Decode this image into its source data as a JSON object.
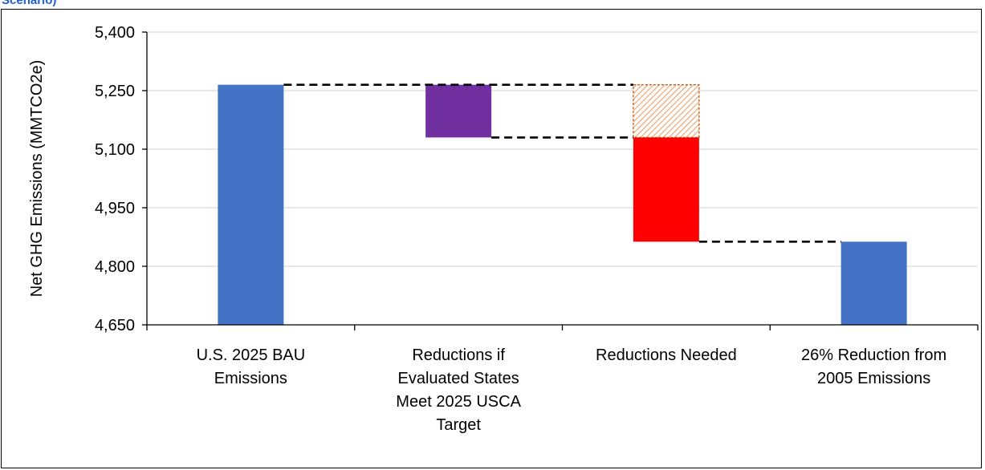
{
  "figure_title_fragment": "Scenario)",
  "chart_data": {
    "type": "bar",
    "subtype": "waterfall",
    "ylabel": "Net GHG Emissions (MMTCO2e)",
    "ylim": [
      4650,
      5400
    ],
    "yticks": [
      "4,650",
      "4,800",
      "4,950",
      "5,100",
      "5,250",
      "5,400"
    ],
    "ytick_values": [
      4650,
      4800,
      4950,
      5100,
      5250,
      5400
    ],
    "grid": true,
    "categories": [
      [
        "U.S. 2025 BAU",
        "Emissions"
      ],
      [
        "Reductions if",
        "Evaluated States",
        "Meet 2025 USCA",
        "Target"
      ],
      [
        "Reductions Needed"
      ],
      [
        "26% Reduction from",
        "2005 Emissions"
      ]
    ],
    "bars": [
      {
        "category_index": 0,
        "start": 4650,
        "end": 5265,
        "color": "#4472c4",
        "style": "solid"
      },
      {
        "category_index": 1,
        "start": 5265,
        "end": 5130,
        "color": "#7030a0",
        "style": "solid"
      },
      {
        "category_index": 2,
        "start": 5265,
        "end": 5130,
        "color": "#ed7d31",
        "style": "hatched"
      },
      {
        "category_index": 2,
        "start": 5130,
        "end": 4863,
        "color": "#ff0000",
        "style": "solid"
      },
      {
        "category_index": 3,
        "start": 4650,
        "end": 4863,
        "color": "#4472c4",
        "style": "solid"
      }
    ],
    "connectors": [
      {
        "from_index": 0,
        "to_index": 2,
        "value": 5265
      },
      {
        "from_index": 1,
        "to_index": 2,
        "value": 5130
      },
      {
        "from_index": 2,
        "to_index": 3,
        "value": 4863
      }
    ]
  }
}
